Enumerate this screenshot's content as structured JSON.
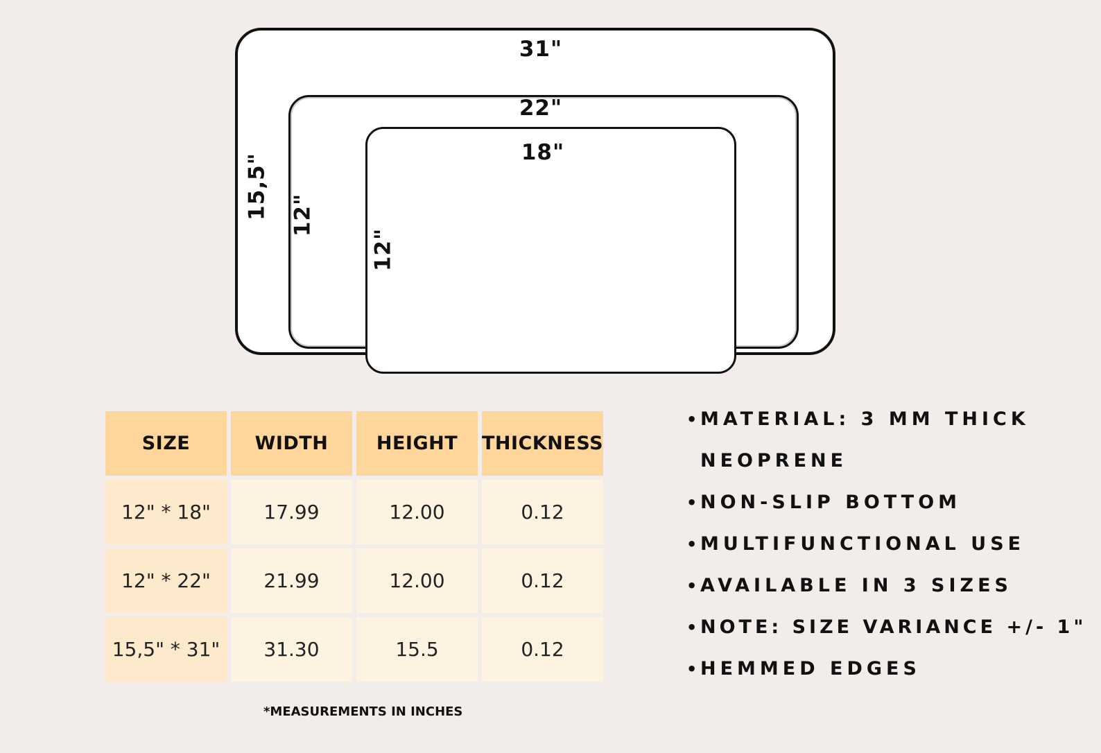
{
  "diagram": {
    "large": {
      "width_label": "31\"",
      "height_label": "15,5\""
    },
    "medium": {
      "width_label": "22\"",
      "height_label": "12\""
    },
    "small": {
      "width_label": "18\"",
      "height_label": "12\""
    }
  },
  "table": {
    "headers": [
      "SIZE",
      "WIDTH",
      "HEIGHT",
      "THICKNESS"
    ],
    "rows": [
      [
        "12\" * 18\"",
        "17.99",
        "12.00",
        "0.12"
      ],
      [
        "12\" * 22\"",
        "21.99",
        "12.00",
        "0.12"
      ],
      [
        "15,5\" * 31\"",
        "31.30",
        "15.5",
        "0.12"
      ]
    ],
    "footnote": "*MEASUREMENTS IN INCHES"
  },
  "features": {
    "bullet": "•",
    "items": [
      "MATERIAL: 3 MM THICK",
      "NEOPRENE",
      "NON-SLIP BOTTOM",
      "MULTIFUNCTIONAL USE",
      "AVAILABLE IN 3 SIZES",
      "NOTE: SIZE VARIANCE +/- 1\"",
      "HEMMED EDGES"
    ]
  },
  "colors": {
    "background": "#f2ecea",
    "header_cell": "#fed59a",
    "size_cell": "#fde9cc",
    "value_cell": "#fef2e1"
  }
}
